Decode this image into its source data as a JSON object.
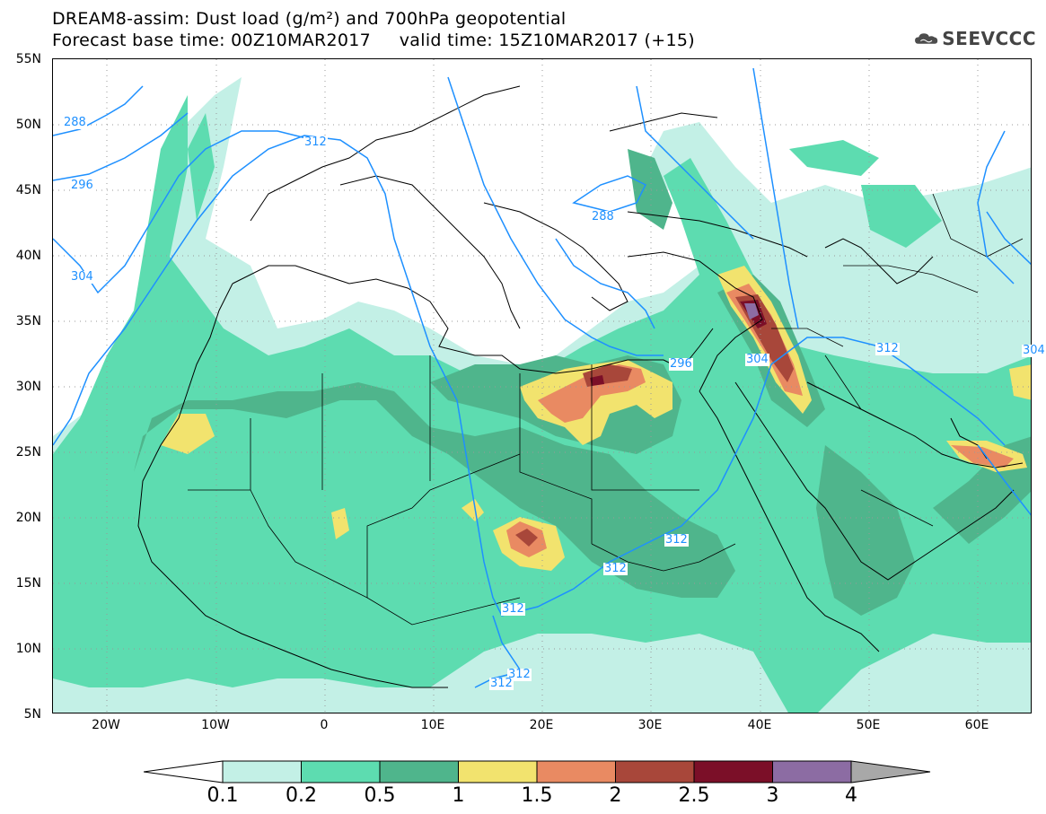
{
  "header": {
    "title_line1": "DREAM8-assim: Dust load (g/m²) and 700hPa geopotential",
    "title_line2": "Forecast base time: 00Z10MAR2017     valid time: 15Z10MAR2017 (+15)",
    "logo_text": "SEEVCCC",
    "logo_icon": "cloud-icon"
  },
  "map": {
    "extent": {
      "lon_min": -25,
      "lon_max": 65,
      "lat_min": 5,
      "lat_max": 55
    },
    "lat_labels": [
      "55N",
      "50N",
      "45N",
      "40N",
      "35N",
      "30N",
      "25N",
      "20N",
      "15N",
      "10N",
      "5N"
    ],
    "lon_labels": [
      "20W",
      "10W",
      "0",
      "10E",
      "20E",
      "30E",
      "40E",
      "50E",
      "60E"
    ],
    "contour_labels": [
      "288",
      "312",
      "296",
      "304",
      "288",
      "296",
      "304",
      "312",
      "304",
      "312",
      "312",
      "312",
      "312",
      "312"
    ],
    "contour_color": "#1e90ff"
  },
  "legend": {
    "labels": [
      "0.1",
      "0.2",
      "0.5",
      "1",
      "1.5",
      "2",
      "2.5",
      "3",
      "4"
    ],
    "colors": [
      "#c3f0e6",
      "#5ddcb0",
      "#4fb58c",
      "#f2e36e",
      "#e98a62",
      "#a8473a",
      "#7b0f28",
      "#8c6ca3",
      "#a8a8a8"
    ]
  }
}
